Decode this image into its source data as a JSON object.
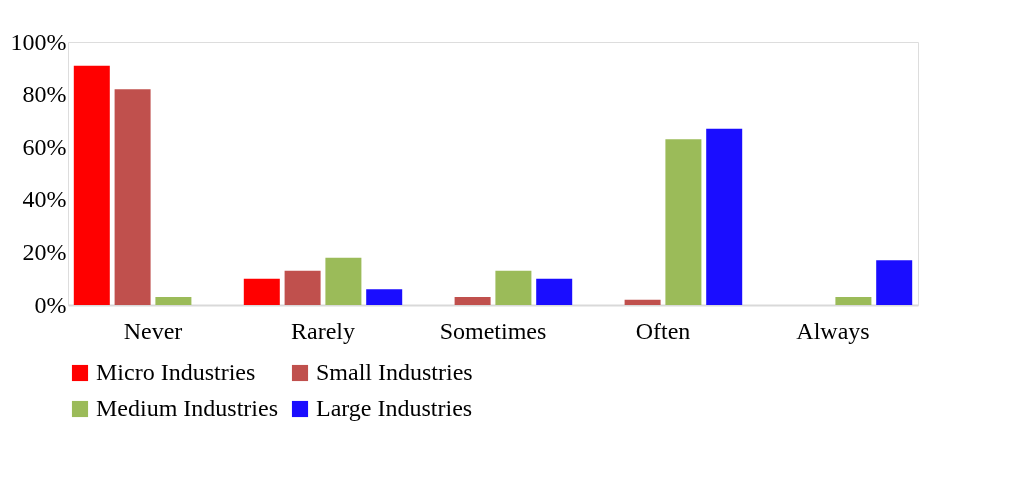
{
  "chart_data": {
    "type": "bar",
    "categories": [
      "Never",
      "Rarely",
      "Sometimes",
      "Often",
      "Always"
    ],
    "series": [
      {
        "name": "Micro Industries",
        "color": "#ff0000",
        "values": [
          91,
          10,
          0,
          0,
          0
        ]
      },
      {
        "name": "Small Industries",
        "color": "#c0504d",
        "values": [
          82,
          13,
          3,
          2,
          0
        ]
      },
      {
        "name": "Medium Industries",
        "color": "#9bbb59",
        "values": [
          3,
          18,
          13,
          63,
          3
        ]
      },
      {
        "name": "Large Industries",
        "color": "#1a0dff",
        "values": [
          0,
          6,
          10,
          67,
          17
        ]
      }
    ],
    "ylim": [
      0,
      100
    ],
    "yticks": [
      {
        "value": 0,
        "label": "0%"
      },
      {
        "value": 20,
        "label": "20%"
      },
      {
        "value": 40,
        "label": "40%"
      },
      {
        "value": 60,
        "label": "60%"
      },
      {
        "value": 80,
        "label": "80%"
      },
      {
        "value": 100,
        "label": "100%"
      }
    ],
    "grid": false,
    "legend": "bottom"
  }
}
